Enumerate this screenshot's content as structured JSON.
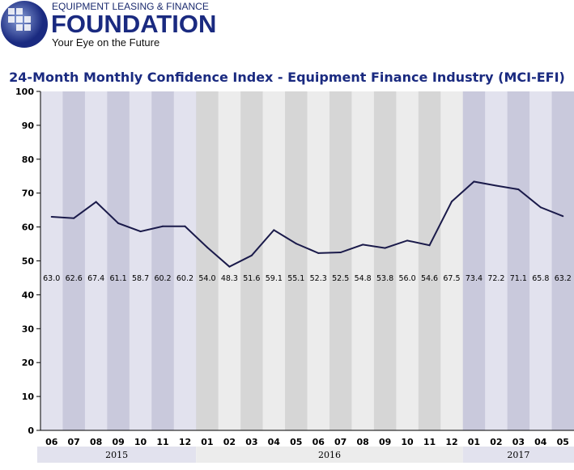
{
  "logo": {
    "line1": "EQUIPMENT LEASING & FINANCE",
    "line2": "FOUNDATION",
    "line3": "Your Eye on the Future"
  },
  "chart_data": {
    "type": "line",
    "title": "24-Month Monthly Confidence Index - Equipment Finance Industry (MCI-EFI)",
    "categories": [
      "06",
      "07",
      "08",
      "09",
      "10",
      "11",
      "12",
      "01",
      "02",
      "03",
      "04",
      "05",
      "06",
      "07",
      "08",
      "09",
      "10",
      "11",
      "12",
      "01",
      "02",
      "03",
      "04",
      "05"
    ],
    "years": [
      {
        "label": "2015",
        "count": 7,
        "color": "#e2e2ee"
      },
      {
        "label": "2016",
        "count": 12,
        "color": "#ececec"
      },
      {
        "label": "2017",
        "count": 5,
        "color": "#e2e2ee"
      }
    ],
    "values": [
      63.0,
      62.6,
      67.4,
      61.1,
      58.7,
      60.2,
      60.2,
      54.0,
      48.3,
      51.6,
      59.1,
      55.1,
      52.3,
      52.5,
      54.8,
      53.8,
      56.0,
      54.6,
      67.5,
      73.4,
      72.2,
      71.1,
      65.8,
      63.2
    ],
    "data_labels": [
      "63.0",
      "62.6",
      "67.4",
      "61.1",
      "58.7",
      "60.2",
      "60.2",
      "54.0",
      "48.3",
      "51.6",
      "59.1",
      "55.1",
      "52.3",
      "52.5",
      "54.8",
      "53.8",
      "56.0",
      "54.6",
      "67.5",
      "73.4",
      "72.2",
      "71.1",
      "65.8",
      "63.2"
    ],
    "ylim": [
      0,
      100
    ],
    "yticks": [
      0,
      10,
      20,
      30,
      40,
      50,
      60,
      70,
      80,
      90,
      100
    ],
    "grid": false,
    "colors": {
      "line": "#1a1a4a",
      "title": "#1a2a80",
      "lav_a": "#e2e2ee",
      "lav_b": "#c9c9dc",
      "grey_a": "#ececec",
      "grey_b": "#d6d6d6"
    }
  }
}
